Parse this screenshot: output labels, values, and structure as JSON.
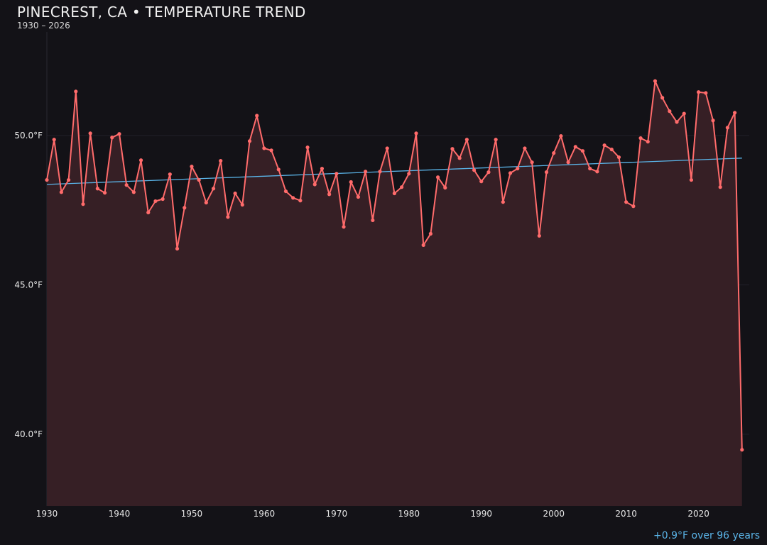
{
  "chart_data": {
    "type": "line",
    "title": "PINECREST, CA • TEMPERATURE TREND",
    "subtitle": "1930 – 2026",
    "annotation": "+0.9°F over 96 years",
    "xlabel": "",
    "ylabel": "",
    "xlim": [
      1930,
      2027
    ],
    "ylim": [
      37.6,
      53.7
    ],
    "x_ticks": [
      1930,
      1940,
      1950,
      1960,
      1970,
      1980,
      1990,
      2000,
      2010,
      2020
    ],
    "y_ticks": [
      40,
      45,
      50
    ],
    "y_tick_labels": [
      "40.0°F",
      "45.0°F",
      "50.0°F"
    ],
    "grid": "horizontal",
    "colors": {
      "series": "#ff6b6b",
      "fill": "#361f25",
      "trend": "#5ab4e8",
      "background": "#131217"
    },
    "x": [
      1930,
      1931,
      1932,
      1933,
      1934,
      1935,
      1936,
      1937,
      1938,
      1939,
      1940,
      1941,
      1942,
      1943,
      1944,
      1945,
      1946,
      1947,
      1948,
      1949,
      1950,
      1951,
      1952,
      1953,
      1954,
      1955,
      1956,
      1957,
      1958,
      1959,
      1960,
      1961,
      1962,
      1963,
      1964,
      1965,
      1966,
      1967,
      1968,
      1969,
      1970,
      1971,
      1972,
      1973,
      1974,
      1975,
      1976,
      1977,
      1978,
      1979,
      1980,
      1981,
      1982,
      1983,
      1984,
      1985,
      1986,
      1987,
      1988,
      1989,
      1990,
      1991,
      1992,
      1993,
      1994,
      1995,
      1996,
      1997,
      1998,
      1999,
      2000,
      2001,
      2002,
      2003,
      2004,
      2005,
      2006,
      2007,
      2008,
      2009,
      2010,
      2011,
      2012,
      2013,
      2014,
      2015,
      2016,
      2017,
      2018,
      2019,
      2020,
      2021,
      2022,
      2023,
      2024,
      2025,
      2026
    ],
    "values": [
      48.51,
      49.86,
      48.1,
      48.51,
      51.47,
      47.7,
      50.07,
      48.22,
      48.08,
      49.93,
      50.05,
      48.34,
      48.1,
      49.17,
      47.42,
      47.8,
      47.87,
      48.7,
      46.21,
      47.58,
      48.96,
      48.51,
      47.75,
      48.22,
      49.15,
      47.27,
      48.06,
      47.68,
      49.81,
      50.66,
      49.57,
      49.5,
      48.86,
      48.13,
      47.91,
      47.82,
      49.6,
      48.36,
      48.89,
      48.03,
      48.72,
      46.94,
      48.44,
      47.94,
      48.79,
      47.16,
      48.79,
      49.57,
      48.06,
      48.27,
      48.72,
      50.07,
      46.33,
      46.71,
      48.6,
      48.25,
      49.55,
      49.24,
      49.86,
      48.84,
      48.46,
      48.77,
      49.86,
      47.77,
      48.74,
      48.89,
      49.57,
      49.1,
      46.64,
      48.77,
      49.41,
      49.98,
      49.1,
      49.62,
      49.48,
      48.89,
      48.79,
      49.67,
      49.53,
      49.27,
      47.77,
      47.63,
      49.91,
      49.79,
      51.82,
      51.26,
      50.81,
      50.45,
      50.73,
      48.51,
      51.45,
      51.42,
      50.5,
      48.27,
      50.26,
      50.76,
      39.48
    ],
    "trend": {
      "x": [
        1930,
        2026
      ],
      "values": [
        48.36,
        49.24
      ]
    }
  }
}
